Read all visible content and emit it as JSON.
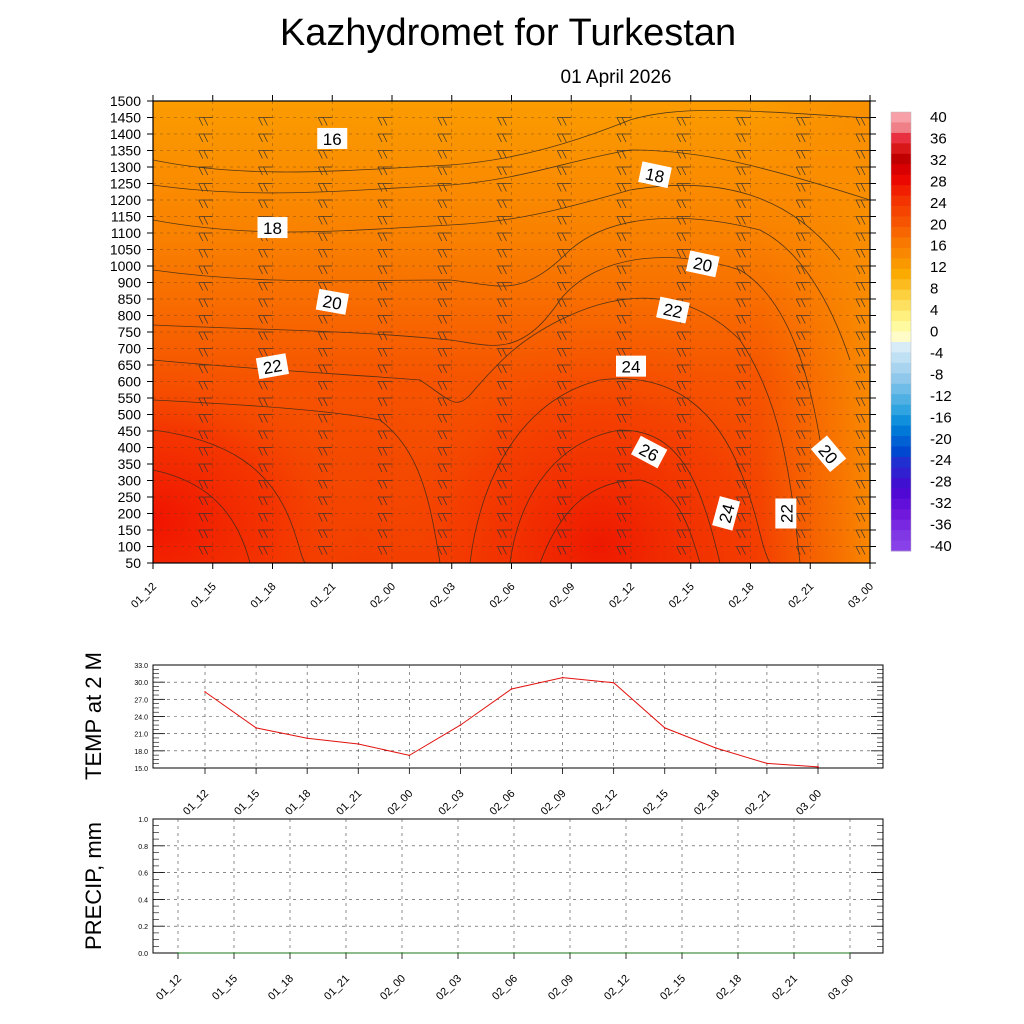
{
  "header": {
    "title": "Kazhydromet  for Turkestan",
    "date": "01 April 2026"
  },
  "chart_data": [
    {
      "type": "heatmap",
      "name": "cross-section",
      "description_units": "temperature (contour labels), y = height/pressure levels",
      "x_ticks": [
        "01_12",
        "01_15",
        "01_18",
        "01_21",
        "02_00",
        "02_03",
        "02_06",
        "02_09",
        "02_12",
        "02_15",
        "02_18",
        "02_21",
        "03_00"
      ],
      "y_ticks": [
        "50",
        "100",
        "150",
        "200",
        "250",
        "300",
        "350",
        "400",
        "450",
        "500",
        "550",
        "600",
        "650",
        "700",
        "750",
        "800",
        "850",
        "900",
        "1000",
        "1050",
        "1100",
        "1150",
        "1200",
        "1250",
        "1300",
        "1350",
        "1400",
        "1450",
        "1500"
      ],
      "contour_labels": [
        {
          "text": "16",
          "x": 3.0,
          "y": 25.7,
          "rot": 0
        },
        {
          "text": "18",
          "x": 8.4,
          "y": 23.5,
          "rot": 12
        },
        {
          "text": "18",
          "x": 2.0,
          "y": 20.3,
          "rot": 0
        },
        {
          "text": "20",
          "x": 9.2,
          "y": 18.1,
          "rot": 12
        },
        {
          "text": "20",
          "x": 3.0,
          "y": 15.8,
          "rot": 10
        },
        {
          "text": "22",
          "x": 8.7,
          "y": 15.3,
          "rot": 12
        },
        {
          "text": "22",
          "x": 2.0,
          "y": 11.9,
          "rot": -10
        },
        {
          "text": "24",
          "x": 8.0,
          "y": 11.9,
          "rot": 0
        },
        {
          "text": "26",
          "x": 8.3,
          "y": 6.7,
          "rot": 28
        },
        {
          "text": "24",
          "x": 9.6,
          "y": 3.0,
          "rot": -75
        },
        {
          "text": "22",
          "x": 10.6,
          "y": 3.0,
          "rot": -90
        },
        {
          "text": "20",
          "x": 11.3,
          "y": 6.6,
          "rot": 50
        }
      ],
      "colorbar": {
        "labels": [
          "40",
          "36",
          "32",
          "28",
          "24",
          "20",
          "16",
          "12",
          "8",
          "4",
          "0",
          "-4",
          "-8",
          "-12",
          "-16",
          "-20",
          "-24",
          "-28",
          "-32",
          "-36",
          "-40"
        ]
      }
    },
    {
      "type": "line",
      "name": "temperature-2m",
      "ylabel": "TEMP at 2 M",
      "x": [
        "01_12",
        "01_15",
        "01_18",
        "01_21",
        "02_00",
        "02_03",
        "02_06",
        "02_09",
        "02_12",
        "02_15",
        "02_18",
        "02_21",
        "03_00"
      ],
      "series": [
        {
          "name": "TEMP at 2 M",
          "values": [
            28.3,
            22.0,
            20.2,
            19.2,
            17.2,
            22.5,
            28.8,
            30.8,
            29.9,
            22.0,
            18.5,
            15.8,
            15.2
          ]
        }
      ],
      "ylim": [
        15.0,
        33.0
      ],
      "y_ticks": [
        "15.0",
        "18.0",
        "21.0",
        "24.0",
        "27.0",
        "30.0",
        "33.0"
      ],
      "color": "#e0120e"
    },
    {
      "type": "line",
      "name": "precipitation",
      "ylabel": "PRECIP, mm",
      "x": [
        "01_12",
        "01_15",
        "01_18",
        "01_21",
        "02_00",
        "02_03",
        "02_06",
        "02_09",
        "02_12",
        "02_15",
        "02_18",
        "02_21",
        "03_00"
      ],
      "series": [
        {
          "name": "PRECIP, mm",
          "values": [
            0,
            0,
            0,
            0,
            0,
            0,
            0,
            0,
            0,
            0,
            0,
            0,
            0
          ]
        }
      ],
      "ylim": [
        0.0,
        1.0
      ],
      "y_ticks": [
        "0.0",
        "0.2",
        "0.4",
        "0.6",
        "0.8",
        "1.0"
      ],
      "color": "#1a7a1a"
    }
  ]
}
